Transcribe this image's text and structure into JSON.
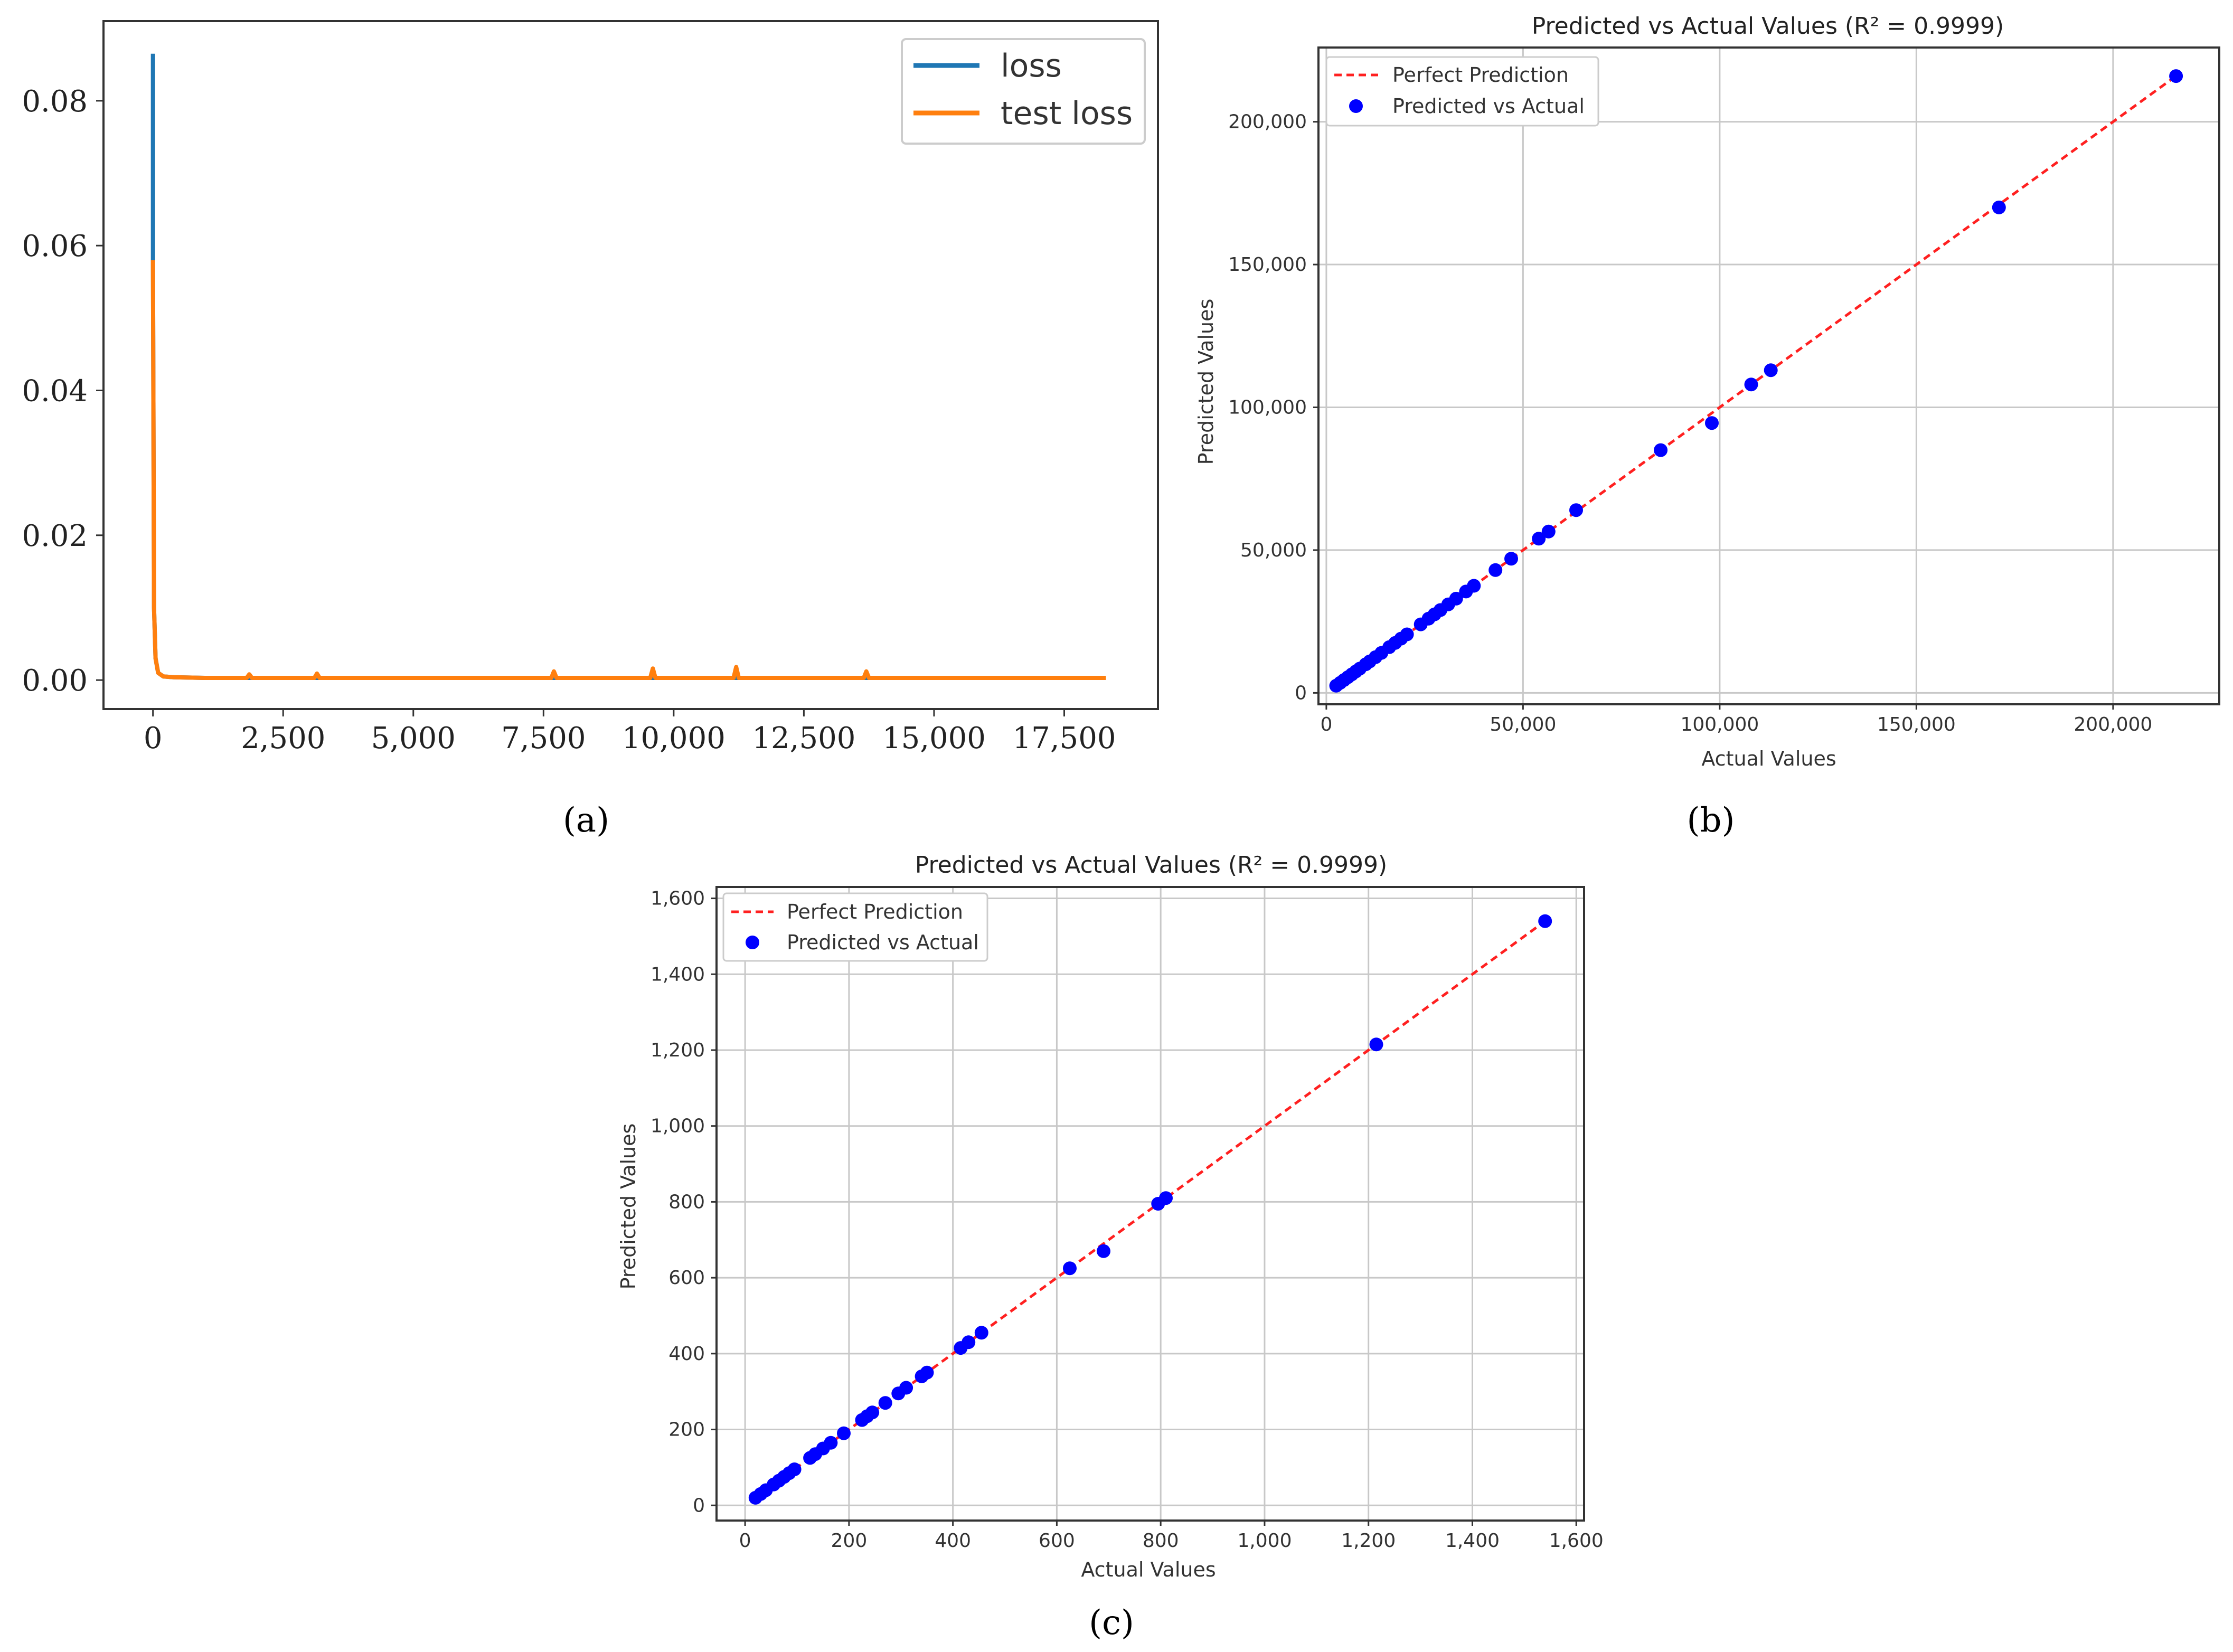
{
  "chart_data": [
    {
      "id": "a",
      "type": "line",
      "caption": "(a)",
      "title": "",
      "xlabel": "",
      "ylabel": "",
      "xlim": [
        -950,
        19300
      ],
      "ylim": [
        -0.004,
        0.091
      ],
      "x_ticks": [
        0,
        2500,
        5000,
        7500,
        10000,
        12500,
        15000,
        17500
      ],
      "x_tick_labels": [
        "0",
        "2,500",
        "5,000",
        "7,500",
        "10,000",
        "12,500",
        "15,000",
        "17,500"
      ],
      "y_ticks": [
        0,
        0.02,
        0.04,
        0.06,
        0.08
      ],
      "y_tick_labels": [
        "0.00",
        "0.02",
        "0.04",
        "0.06",
        "0.08"
      ],
      "grid": false,
      "legend_position": "top-right",
      "series": [
        {
          "name": "loss",
          "color": "#1f77b4",
          "x": [
            0,
            0,
            20,
            50,
            100,
            200,
            400,
            1000,
            1800,
            3000,
            5000,
            7700,
            9600,
            11200,
            13700,
            16000,
            18300
          ],
          "y": [
            0.0865,
            0.058,
            0.01,
            0.003,
            0.001,
            0.0005,
            0.0004,
            0.0003,
            0.0003,
            0.0003,
            0.0003,
            0.0003,
            0.0003,
            0.0003,
            0.0003,
            0.0003,
            0.0003
          ]
        },
        {
          "name": "test loss",
          "color": "#ff7f0e",
          "x": [
            0,
            20,
            50,
            100,
            200,
            400,
            1000,
            1800,
            1850,
            1900,
            3100,
            3150,
            3200,
            5000,
            7650,
            7700,
            7750,
            9550,
            9600,
            9650,
            11150,
            11200,
            11250,
            13650,
            13700,
            13750,
            16000,
            18300
          ],
          "y": [
            0.058,
            0.01,
            0.003,
            0.001,
            0.0005,
            0.0004,
            0.0003,
            0.0003,
            0.0008,
            0.0003,
            0.0003,
            0.0009,
            0.0003,
            0.0003,
            0.0003,
            0.0012,
            0.0003,
            0.0003,
            0.0016,
            0.0003,
            0.0003,
            0.0018,
            0.0003,
            0.0003,
            0.0012,
            0.0003,
            0.0003,
            0.0003
          ]
        }
      ]
    },
    {
      "id": "b",
      "type": "scatter",
      "caption": "(b)",
      "title": "Predicted vs Actual Values (R² = 0.9999)",
      "xlabel": "Actual Values",
      "ylabel": "Predicted Values",
      "xlim": [
        -2000,
        227000
      ],
      "ylim": [
        -4000,
        226000
      ],
      "x_ticks": [
        0,
        50000,
        100000,
        150000,
        200000
      ],
      "x_tick_labels": [
        "0",
        "50,000",
        "100,000",
        "150,000",
        "200,000"
      ],
      "y_ticks": [
        0,
        50000,
        100000,
        150000,
        200000
      ],
      "y_tick_labels": [
        "0",
        "50,000",
        "100,000",
        "150,000",
        "200,000"
      ],
      "grid": true,
      "legend_position": "top-left",
      "line": {
        "name": "Perfect Prediction",
        "color": "#ff2020",
        "x": [
          2000,
          217000
        ],
        "y": [
          2000,
          217000
        ]
      },
      "points": {
        "name": "Predicted vs Actual",
        "color": "#0000ff",
        "x": [
          2500,
          3500,
          4500,
          5500,
          6500,
          7500,
          8500,
          10000,
          11000,
          12500,
          14000,
          16000,
          17500,
          19000,
          20500,
          24000,
          26000,
          27500,
          29000,
          31000,
          33000,
          35500,
          37500,
          43000,
          47000,
          54000,
          56500,
          63500,
          85000,
          98000,
          108000,
          113000,
          171000,
          216000
        ],
        "y": [
          2500,
          3500,
          4500,
          5500,
          6500,
          7500,
          8500,
          10000,
          11000,
          12500,
          14000,
          16000,
          17500,
          19000,
          20500,
          24000,
          26000,
          27500,
          29000,
          31000,
          33000,
          35500,
          37500,
          43000,
          47000,
          54000,
          56500,
          64000,
          85000,
          94500,
          108000,
          113000,
          170000,
          216000
        ]
      }
    },
    {
      "id": "c",
      "type": "scatter",
      "caption": "(c)",
      "title": "Predicted vs Actual Values (R² = 0.9999)",
      "xlabel": "Actual Values",
      "ylabel": "Predicted Values",
      "xlim": [
        -55,
        1615
      ],
      "ylim": [
        -40,
        1630
      ],
      "x_ticks": [
        0,
        200,
        400,
        600,
        800,
        1000,
        1200,
        1400,
        1600
      ],
      "x_tick_labels": [
        "0",
        "200",
        "400",
        "600",
        "800",
        "1,000",
        "1,200",
        "1,400",
        "1,600"
      ],
      "y_ticks": [
        0,
        200,
        400,
        600,
        800,
        1000,
        1200,
        1400,
        1600
      ],
      "y_tick_labels": [
        "0",
        "200",
        "400",
        "600",
        "800",
        "1,000",
        "1,200",
        "1,400",
        "1,600"
      ],
      "grid": true,
      "legend_position": "top-left",
      "line": {
        "name": "Perfect Prediction",
        "color": "#ff2020",
        "x": [
          20,
          1540
        ],
        "y": [
          20,
          1540
        ]
      },
      "points": {
        "name": "Predicted vs Actual",
        "color": "#0000ff",
        "x": [
          20,
          30,
          40,
          55,
          65,
          75,
          85,
          95,
          125,
          135,
          150,
          165,
          190,
          225,
          235,
          245,
          270,
          295,
          310,
          340,
          350,
          415,
          430,
          455,
          625,
          690,
          795,
          810,
          1215,
          1540
        ],
        "y": [
          20,
          30,
          40,
          55,
          65,
          75,
          85,
          95,
          125,
          135,
          150,
          165,
          190,
          225,
          235,
          245,
          270,
          295,
          310,
          340,
          350,
          415,
          430,
          455,
          625,
          670,
          795,
          810,
          1215,
          1540
        ]
      }
    }
  ]
}
